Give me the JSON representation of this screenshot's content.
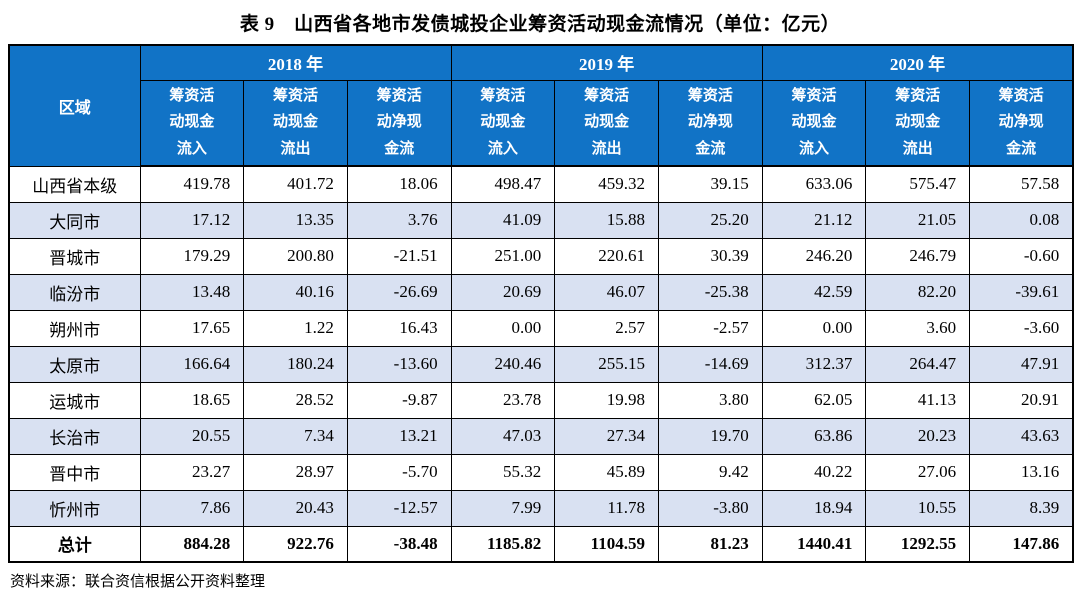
{
  "title": "表 9　山西省各地市发债城投企业筹资活动现金流情况（单位：亿元）",
  "colors": {
    "header_bg": "#1173C6",
    "header_text": "#FFFFFF",
    "alt_row_bg": "#D9E1F2",
    "border": "#000000"
  },
  "table": {
    "region_header": "区域",
    "year_groups": [
      "2018 年",
      "2019 年",
      "2020 年"
    ],
    "sub_headers": [
      "筹资活\n动现金\n流入",
      "筹资活\n动现金\n流出",
      "筹资活\n动净现\n金流",
      "筹资活\n动现金\n流入",
      "筹资活\n动现金\n流出",
      "筹资活\n动净现\n金流",
      "筹资活\n动现金\n流入",
      "筹资活\n动现金\n流出",
      "筹资活\n动净现\n金流"
    ],
    "rows": [
      {
        "region": "山西省本级",
        "values": [
          "419.78",
          "401.72",
          "18.06",
          "498.47",
          "459.32",
          "39.15",
          "633.06",
          "575.47",
          "57.58"
        ]
      },
      {
        "region": "大同市",
        "values": [
          "17.12",
          "13.35",
          "3.76",
          "41.09",
          "15.88",
          "25.20",
          "21.12",
          "21.05",
          "0.08"
        ]
      },
      {
        "region": "晋城市",
        "values": [
          "179.29",
          "200.80",
          "-21.51",
          "251.00",
          "220.61",
          "30.39",
          "246.20",
          "246.79",
          "-0.60"
        ]
      },
      {
        "region": "临汾市",
        "values": [
          "13.48",
          "40.16",
          "-26.69",
          "20.69",
          "46.07",
          "-25.38",
          "42.59",
          "82.20",
          "-39.61"
        ]
      },
      {
        "region": "朔州市",
        "values": [
          "17.65",
          "1.22",
          "16.43",
          "0.00",
          "2.57",
          "-2.57",
          "0.00",
          "3.60",
          "-3.60"
        ]
      },
      {
        "region": "太原市",
        "values": [
          "166.64",
          "180.24",
          "-13.60",
          "240.46",
          "255.15",
          "-14.69",
          "312.37",
          "264.47",
          "47.91"
        ]
      },
      {
        "region": "运城市",
        "values": [
          "18.65",
          "28.52",
          "-9.87",
          "23.78",
          "19.98",
          "3.80",
          "62.05",
          "41.13",
          "20.91"
        ]
      },
      {
        "region": "长治市",
        "values": [
          "20.55",
          "7.34",
          "13.21",
          "47.03",
          "27.34",
          "19.70",
          "63.86",
          "20.23",
          "43.63"
        ]
      },
      {
        "region": "晋中市",
        "values": [
          "23.27",
          "28.97",
          "-5.70",
          "55.32",
          "45.89",
          "9.42",
          "40.22",
          "27.06",
          "13.16"
        ]
      },
      {
        "region": "忻州市",
        "values": [
          "7.86",
          "20.43",
          "-12.57",
          "7.99",
          "11.78",
          "-3.80",
          "18.94",
          "10.55",
          "8.39"
        ]
      }
    ],
    "total_row": {
      "region": "总计",
      "values": [
        "884.28",
        "922.76",
        "-38.48",
        "1185.82",
        "1104.59",
        "81.23",
        "1440.41",
        "1292.55",
        "147.86"
      ]
    }
  },
  "source": "资料来源：联合资信根据公开资料整理"
}
